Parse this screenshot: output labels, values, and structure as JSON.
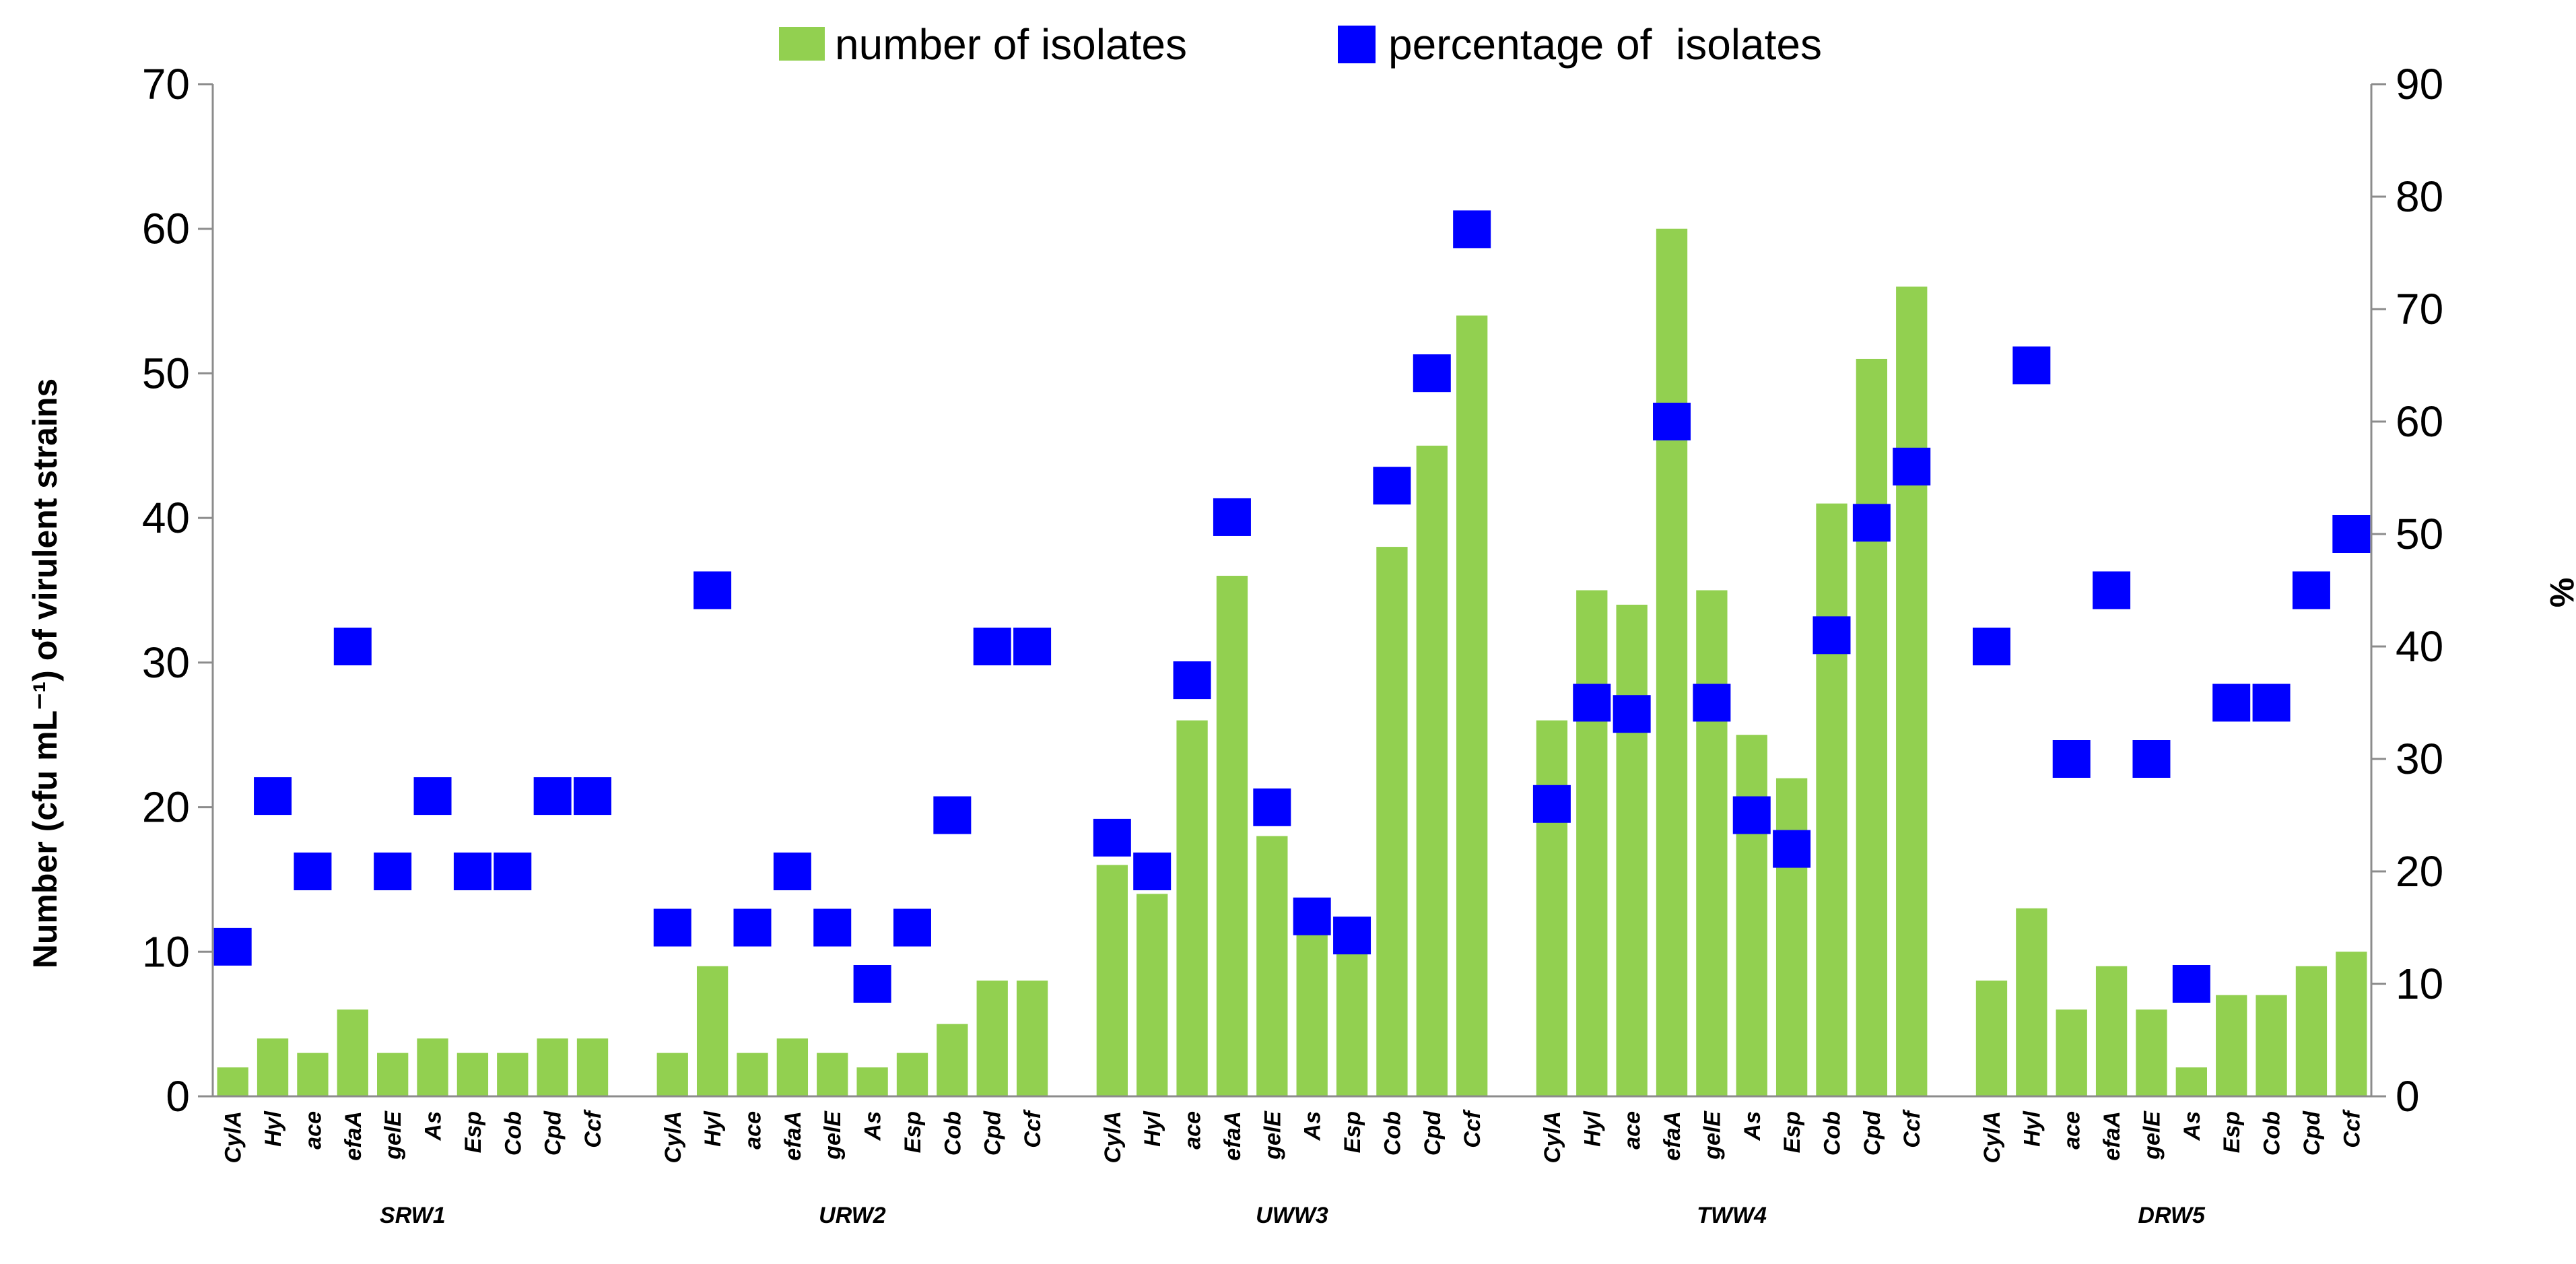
{
  "chart_data": {
    "type": "bar",
    "title": "",
    "legend": {
      "placement": "top",
      "bar_label": "number of isolates",
      "marker_label": "percentage of  isolates"
    },
    "colors": {
      "bars": "#92d050",
      "markers": "#0000ff",
      "axis": "#8c8c8c"
    },
    "ylabel": "Number (cfu mL⁻¹) of virulent  strains",
    "y2label": "%",
    "ylim": [
      0,
      70
    ],
    "y2lim": [
      0,
      90
    ],
    "yticks": [
      "0",
      "10",
      "20",
      "30",
      "40",
      "50",
      "60",
      "70"
    ],
    "y2ticks": [
      "0",
      "10",
      "20",
      "30",
      "40",
      "50",
      "60",
      "70",
      "80",
      "90"
    ],
    "groups": [
      {
        "name": "SRW1",
        "categories": [
          "CylA",
          "Hyl",
          "ace",
          "efaA",
          "gelE",
          "As",
          "Esp",
          "Cob",
          "Cpd",
          "Ccf"
        ],
        "counts": [
          2,
          4,
          3,
          6,
          3,
          4,
          3,
          3,
          4,
          4
        ],
        "percentages": [
          13.3,
          26.7,
          20,
          40,
          20,
          26.7,
          20,
          20,
          26.7,
          26.7
        ]
      },
      {
        "name": "URW2",
        "categories": [
          "CylA",
          "Hyl",
          "ace",
          "efaA",
          "gelE",
          "As",
          "Esp",
          "Cob",
          "Cpd",
          "Ccf"
        ],
        "counts": [
          3,
          9,
          3,
          4,
          3,
          2,
          3,
          5,
          8,
          8
        ],
        "percentages": [
          15,
          45,
          15,
          20,
          15,
          10,
          15,
          25,
          40,
          40
        ]
      },
      {
        "name": "UWW3",
        "categories": [
          "CylA",
          "Hyl",
          "ace",
          "efaA",
          "gelE",
          "As",
          "Esp",
          "Cob",
          "Cpd",
          "Ccf"
        ],
        "counts": [
          16,
          14,
          26,
          36,
          18,
          12,
          11,
          38,
          45,
          54
        ],
        "percentages": [
          23,
          20,
          37,
          51.5,
          25.7,
          16,
          14.3,
          54.3,
          64.3,
          77.1
        ]
      },
      {
        "name": "TWW4",
        "categories": [
          "CylA",
          "Hyl",
          "ace",
          "efaA",
          "gelE",
          "As",
          "Esp",
          "Cob",
          "Cpd",
          "Ccf"
        ],
        "counts": [
          26,
          35,
          34,
          60,
          35,
          25,
          22,
          41,
          51,
          56
        ],
        "percentages": [
          26,
          35,
          34,
          60,
          35,
          25,
          22,
          41,
          51,
          56
        ]
      },
      {
        "name": "DRW5",
        "categories": [
          "CylA",
          "Hyl",
          "ace",
          "efaA",
          "gelE",
          "As",
          "Esp",
          "Cob",
          "Cpd",
          "Ccf"
        ],
        "counts": [
          8,
          13,
          6,
          9,
          6,
          2,
          7,
          7,
          9,
          10
        ],
        "percentages": [
          40,
          65,
          30,
          45,
          30,
          10,
          35,
          35,
          45,
          50
        ]
      }
    ]
  }
}
